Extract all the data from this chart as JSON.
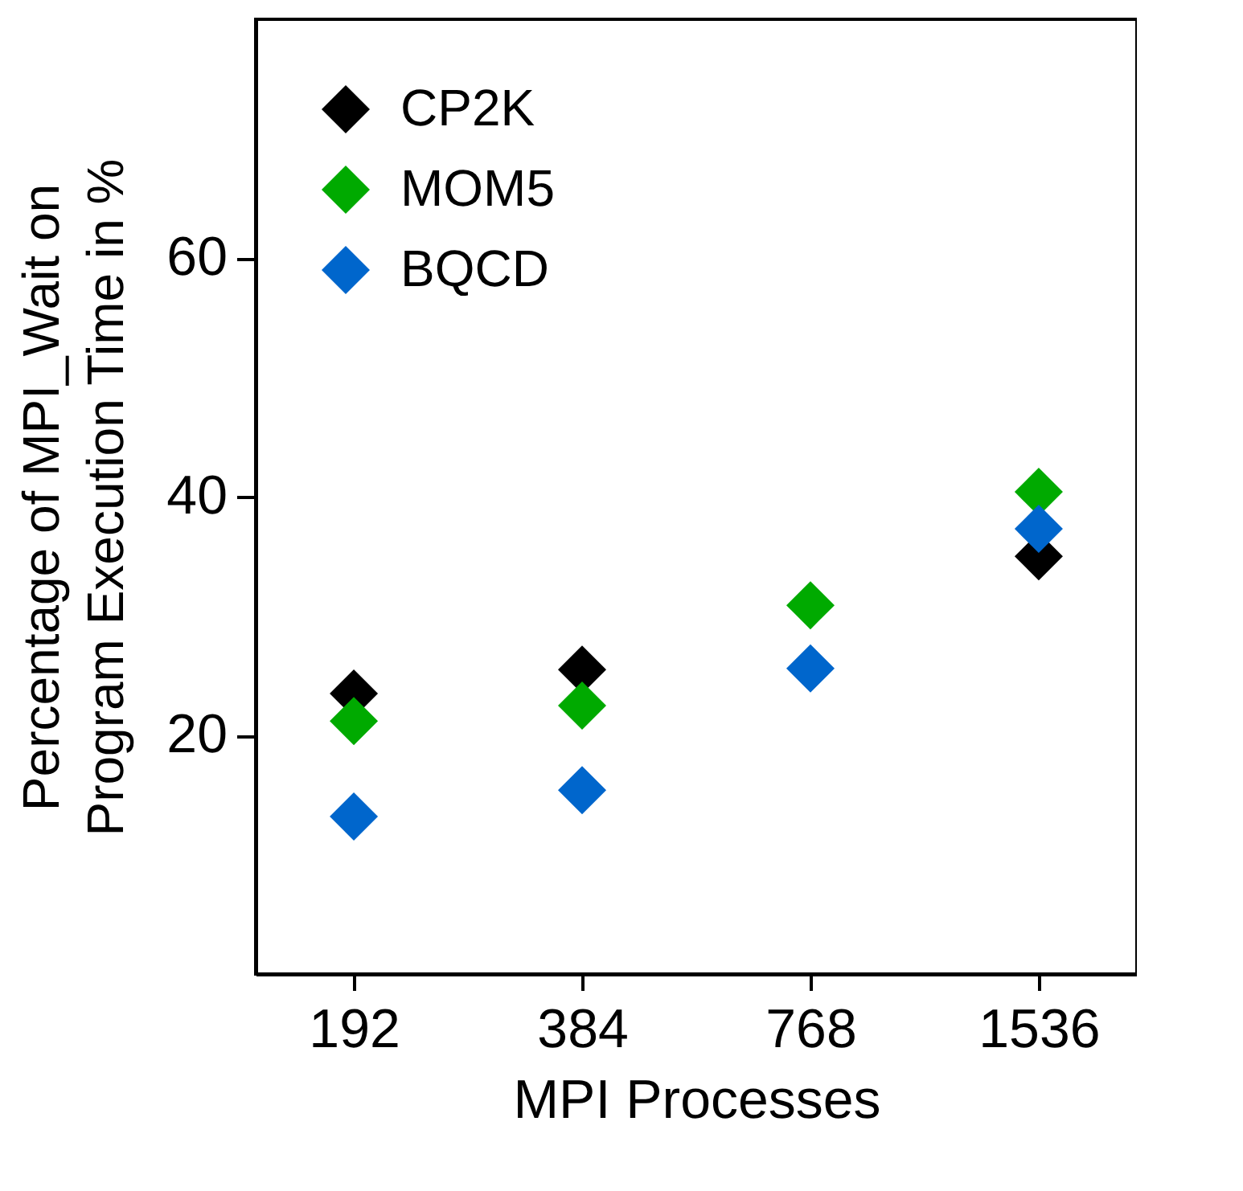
{
  "chart_data": {
    "type": "scatter",
    "xlabel": "MPI Processes",
    "ylabel": "Percentage of MPI_Wait on Program Execution Time in %",
    "categories": [
      "192",
      "384",
      "768",
      "1536"
    ],
    "series": [
      {
        "name": "CP2K",
        "color": "#000000",
        "values": [
          23.5,
          25.5,
          null,
          35.0
        ]
      },
      {
        "name": "MOM5",
        "color": "#00aa00",
        "values": [
          21.2,
          22.5,
          30.9,
          40.4
        ]
      },
      {
        "name": "BQCD",
        "color": "#0066cc",
        "values": [
          13.2,
          15.4,
          25.6,
          37.3
        ]
      }
    ],
    "ylim": [
      0,
      80
    ],
    "yticks": [
      20,
      40,
      60
    ],
    "marker": "diamond",
    "legend": "top left",
    "grid": false
  }
}
